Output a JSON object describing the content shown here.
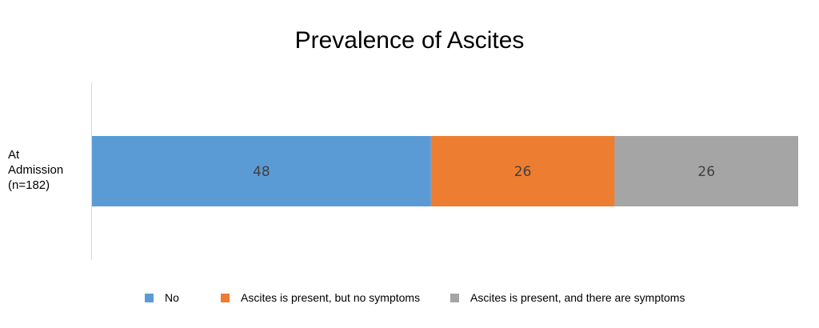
{
  "chart_data": {
    "type": "bar",
    "orientation": "horizontal",
    "stacked": true,
    "title": "Prevalence of Ascites",
    "categories": [
      "At Admission (n=182)"
    ],
    "category_label_lines": [
      "At",
      "Admission",
      "(n=182)"
    ],
    "series": [
      {
        "name": "No",
        "values": [
          48
        ],
        "color": "#5B9BD5"
      },
      {
        "name": "Ascites is present, but no symptoms",
        "values": [
          26
        ],
        "color": "#ED7D31"
      },
      {
        "name": "Ascites is present, and there are symptoms",
        "values": [
          26
        ],
        "color": "#A5A5A5"
      }
    ],
    "data_labels": [
      "48",
      "26",
      "26"
    ],
    "xlim": [
      0,
      100
    ],
    "grid": false,
    "legend_position": "bottom"
  }
}
